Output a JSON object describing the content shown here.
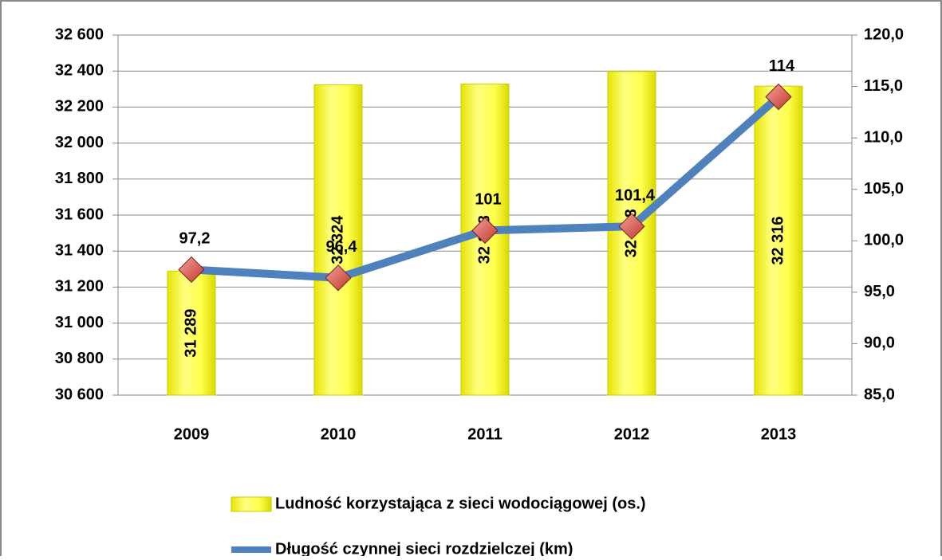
{
  "chart_data": {
    "type": "bar-line",
    "categories": [
      "2009",
      "2010",
      "2011",
      "2012",
      "2013"
    ],
    "series": [
      {
        "name": "Ludność korzystająca z sieci wodociągowej (os.)",
        "type": "bar",
        "color": "#ffff4d",
        "values": [
          31289,
          32324,
          32328,
          32398,
          32316
        ],
        "value_labels": [
          "31 289",
          "32 324",
          "32 328",
          "32 398",
          "32 316"
        ]
      },
      {
        "name": "Długość czynnej sieci rozdzielczej (km)",
        "type": "line",
        "axis": "y2",
        "color": "#4f81bd",
        "marker_color": "#d9534f",
        "values": [
          97.2,
          96.4,
          101,
          101.4,
          114
        ],
        "value_labels": [
          "97,2",
          "96,4",
          "101",
          "101,4",
          "114"
        ]
      }
    ],
    "ylim": [
      30600,
      32600
    ],
    "yticks": [
      {
        "value": 30600,
        "label": "30 600"
      },
      {
        "value": 30800,
        "label": "30 800"
      },
      {
        "value": 31000,
        "label": "31 000"
      },
      {
        "value": 31200,
        "label": "31 200"
      },
      {
        "value": 31400,
        "label": "31 400"
      },
      {
        "value": 31600,
        "label": "31 600"
      },
      {
        "value": 31800,
        "label": "31 800"
      },
      {
        "value": 32000,
        "label": "32 000"
      },
      {
        "value": 32200,
        "label": "32 200"
      },
      {
        "value": 32400,
        "label": "32 400"
      },
      {
        "value": 32600,
        "label": "32 600"
      }
    ],
    "y2lim": [
      85,
      120
    ],
    "y2ticks": [
      {
        "value": 85,
        "label": "85,0"
      },
      {
        "value": 90,
        "label": "90,0"
      },
      {
        "value": 95,
        "label": "95,0"
      },
      {
        "value": 100,
        "label": "100,0"
      },
      {
        "value": 105,
        "label": "105,0"
      },
      {
        "value": 110,
        "label": "110,0"
      },
      {
        "value": 115,
        "label": "115,0"
      },
      {
        "value": 120,
        "label": "120,0"
      }
    ],
    "grid": true,
    "legend": "bottom"
  }
}
